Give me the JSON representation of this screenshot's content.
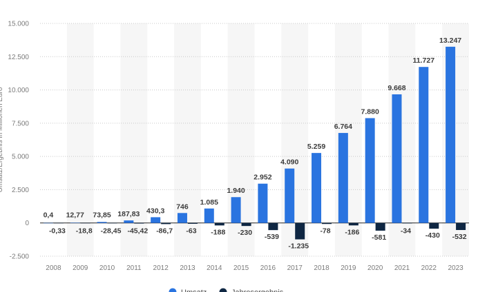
{
  "chart_data": {
    "type": "bar",
    "categories": [
      "2008",
      "2009",
      "2010",
      "2011",
      "2012",
      "2013",
      "2014",
      "2015",
      "2016",
      "2017",
      "2018",
      "2019",
      "2020",
      "2021",
      "2022",
      "2023"
    ],
    "series": [
      {
        "name": "Umsatz",
        "color": "#2a74e0",
        "values": [
          0.4,
          12.77,
          73.85,
          187.83,
          430.3,
          746,
          1085,
          1940,
          2952,
          4090,
          5259,
          6764,
          7880,
          9668,
          11727,
          13247
        ],
        "labels": [
          "0,4",
          "12,77",
          "73,85",
          "187,83",
          "430,3",
          "746",
          "1.085",
          "1.940",
          "2.952",
          "4.090",
          "5.259",
          "6.764",
          "7.880",
          "9.668",
          "11.727",
          "13.247"
        ]
      },
      {
        "name": "Jahresergebnis",
        "color": "#0f2743",
        "values": [
          -0.33,
          -18.8,
          -28.45,
          -45.42,
          -86.7,
          -63,
          -188,
          -230,
          -539,
          -1235,
          -78,
          -186,
          -581,
          -34,
          -430,
          -532
        ],
        "labels": [
          "-0,33",
          "-18,8",
          "-28,45",
          "-45,42",
          "-86,7",
          "-63",
          "-188",
          "-230",
          "-539",
          "-1.235",
          "-78",
          "-186",
          "-581",
          "-34",
          "-430",
          "-532"
        ]
      }
    ],
    "ylim": [
      -2500,
      15000
    ],
    "yticks": [
      -2500,
      0,
      2500,
      5000,
      7500,
      10000,
      12500,
      15000
    ],
    "ytick_labels": [
      "-2.500",
      "0",
      "2.500",
      "5.000",
      "7.500",
      "10.000",
      "12.500",
      "15.000"
    ],
    "ylabel": "Umsatz/Ergebnis in Millionen Euro",
    "xlabel": "",
    "title": "",
    "grid": true,
    "legend_position": "bottom"
  }
}
